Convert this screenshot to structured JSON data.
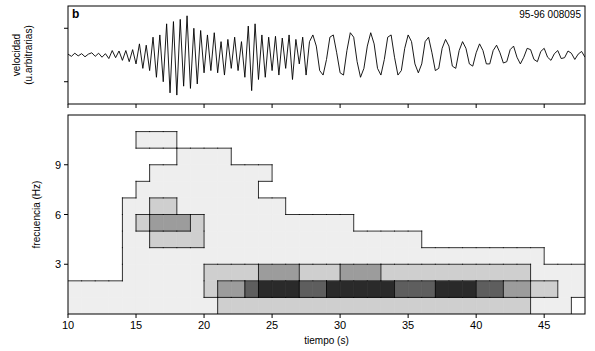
{
  "chart_data": [
    {
      "type": "line",
      "panel": "b",
      "annotations": [
        "95-96 008095"
      ],
      "ylabel": "velocidad (u.arbitrarias)",
      "color": "#000000",
      "tick_labels": false,
      "xlim": [
        10,
        48
      ],
      "xticks": [
        10,
        15,
        20,
        25,
        30,
        35,
        40,
        45
      ],
      "ylim": [
        -1.1,
        1.1
      ],
      "yticks": [
        -0.6,
        0.6
      ],
      "x": [
        10,
        10.25,
        10.5,
        10.75,
        11,
        11.25,
        11.5,
        11.75,
        12,
        12.25,
        12.5,
        12.75,
        13,
        13.25,
        13.5,
        13.75,
        14,
        14.25,
        14.5,
        14.75,
        15,
        15.25,
        15.5,
        15.75,
        16,
        16.25,
        16.5,
        16.75,
        17,
        17.25,
        17.5,
        17.75,
        18,
        18.25,
        18.5,
        18.75,
        19,
        19.25,
        19.5,
        19.75,
        20,
        20.25,
        20.5,
        20.75,
        21,
        21.25,
        21.5,
        21.75,
        22,
        22.25,
        22.5,
        22.75,
        23,
        23.25,
        23.5,
        23.75,
        24,
        24.25,
        24.5,
        24.75,
        25,
        25.25,
        25.5,
        25.75,
        26,
        26.25,
        26.5,
        26.75,
        27,
        27.25,
        27.5,
        27.75,
        28,
        28.25,
        28.5,
        28.75,
        29,
        29.25,
        29.5,
        29.75,
        30,
        30.25,
        30.5,
        30.75,
        31,
        31.25,
        31.5,
        31.75,
        32,
        32.25,
        32.5,
        32.75,
        33,
        33.25,
        33.5,
        33.75,
        34,
        34.25,
        34.5,
        34.75,
        35,
        35.25,
        35.5,
        35.75,
        36,
        36.25,
        36.5,
        36.75,
        37,
        37.25,
        37.5,
        37.75,
        38,
        38.25,
        38.5,
        38.75,
        39,
        39.25,
        39.5,
        39.75,
        40,
        40.25,
        40.5,
        40.75,
        41,
        41.25,
        41.5,
        41.75,
        42,
        42.25,
        42.5,
        42.75,
        43,
        43.25,
        43.5,
        43.75,
        44,
        44.25,
        44.5,
        44.75,
        45,
        45.25,
        45.5,
        45.75,
        46,
        46.25,
        46.5,
        46.75,
        47,
        47.25,
        47.5,
        47.75,
        48
      ],
      "values": [
        0.02,
        -0.03,
        0.04,
        -0.02,
        0.03,
        -0.04,
        0.02,
        0.05,
        -0.03,
        0.04,
        -0.05,
        0.03,
        -0.08,
        0.1,
        -0.06,
        0.09,
        -0.12,
        0.1,
        -0.15,
        0.12,
        -0.2,
        0.25,
        -0.3,
        0.22,
        -0.35,
        0.4,
        -0.5,
        0.45,
        -0.6,
        0.7,
        -0.85,
        0.75,
        -0.9,
        0.8,
        -0.7,
        0.88,
        -0.75,
        0.6,
        -0.65,
        0.55,
        -0.4,
        0.45,
        -0.35,
        0.5,
        -0.4,
        0.3,
        -0.45,
        0.35,
        -0.3,
        0.4,
        -0.35,
        0.3,
        -0.5,
        0.65,
        -0.8,
        0.7,
        -0.55,
        0.45,
        -0.5,
        0.4,
        -0.35,
        0.42,
        -0.45,
        0.38,
        -0.3,
        0.45,
        -0.55,
        0.35,
        -0.2,
        0.4,
        -0.45,
        0.3,
        0.45,
        0.2,
        -0.35,
        -0.45,
        -0.1,
        0.4,
        0.45,
        0.05,
        -0.4,
        -0.45,
        0.1,
        0.5,
        0.4,
        -0.15,
        -0.5,
        -0.3,
        0.2,
        0.5,
        0.25,
        -0.3,
        -0.45,
        -0.1,
        0.4,
        0.45,
        -0.05,
        -0.45,
        -0.35,
        0.15,
        0.45,
        0.3,
        -0.2,
        -0.4,
        -0.2,
        0.3,
        0.4,
        0.05,
        -0.35,
        -0.3,
        0.15,
        0.35,
        0.2,
        -0.25,
        -0.3,
        0.1,
        0.3,
        0.15,
        -0.2,
        -0.25,
        0.05,
        0.25,
        0.1,
        -0.2,
        -0.2,
        0.1,
        0.22,
        0.05,
        -0.18,
        -0.15,
        0.12,
        0.2,
        -0.05,
        -0.2,
        -0.05,
        0.15,
        0.12,
        -0.1,
        -0.15,
        0.08,
        0.15,
        -0.05,
        -0.12,
        0.03,
        0.1,
        -0.08,
        -0.06,
        0.09,
        0.04,
        -0.1,
        0.02,
        0.08,
        -0.05
      ]
    },
    {
      "type": "contour",
      "xlabel": "tiempo (s)",
      "ylabel": "frecuencia (Hz)",
      "xlim": [
        10,
        48
      ],
      "xticks": [
        10,
        15,
        20,
        25,
        30,
        35,
        40,
        45
      ],
      "ylim": [
        0,
        12
      ],
      "yticks": [
        3,
        6,
        9
      ],
      "levels": [
        1,
        2,
        3,
        4,
        5
      ],
      "colors": [
        "#ffffff",
        "#eeeeee",
        "#cfcfcf",
        "#9c9c9c",
        "#5e5e5e",
        "#2a2a2a"
      ],
      "x": [
        10.5,
        11.5,
        12.5,
        13.5,
        14.5,
        15.5,
        16.5,
        17.5,
        18.5,
        19.5,
        20.5,
        21.5,
        22.5,
        23.5,
        24.5,
        25.5,
        26.5,
        27.5,
        28.5,
        29.5,
        30.5,
        31.5,
        32.5,
        33.5,
        34.5,
        35.5,
        36.5,
        37.5,
        38.5,
        39.5,
        40.5,
        41.5,
        42.5,
        43.5,
        44.5,
        45.5,
        46.5,
        47.5
      ],
      "y": [
        0.5,
        1.5,
        2.5,
        3.5,
        4.5,
        5.5,
        6.5,
        7.5,
        8.5,
        9.5,
        10.5,
        11.5
      ],
      "values": [
        [
          1,
          1,
          1,
          1,
          1,
          1,
          1,
          1,
          1,
          1,
          1,
          2,
          2,
          2,
          2,
          2,
          2,
          2,
          2,
          2,
          2,
          2,
          2,
          2,
          2,
          2,
          2,
          2,
          2,
          2,
          2,
          2,
          2,
          2,
          1,
          1,
          1,
          0
        ],
        [
          1,
          1,
          1,
          1,
          1,
          1,
          1,
          1,
          1,
          1,
          2,
          3,
          3,
          4,
          5,
          5,
          5,
          4,
          4,
          5,
          5,
          5,
          5,
          5,
          4,
          4,
          4,
          5,
          5,
          5,
          4,
          4,
          3,
          3,
          2,
          2,
          1,
          1
        ],
        [
          0,
          0,
          0,
          0,
          1,
          1,
          1,
          1,
          1,
          1,
          2,
          2,
          2,
          2,
          3,
          3,
          3,
          2,
          2,
          2,
          3,
          3,
          3,
          2,
          2,
          2,
          2,
          2,
          2,
          2,
          2,
          2,
          2,
          2,
          1,
          1,
          1,
          1
        ],
        [
          0,
          0,
          0,
          0,
          1,
          1,
          1,
          1,
          1,
          1,
          1,
          1,
          1,
          1,
          1,
          1,
          1,
          1,
          1,
          1,
          1,
          1,
          1,
          1,
          1,
          1,
          1,
          1,
          1,
          1,
          1,
          1,
          1,
          1,
          1,
          0,
          0,
          0
        ],
        [
          0,
          0,
          0,
          0,
          1,
          1,
          2,
          2,
          2,
          2,
          1,
          1,
          1,
          1,
          1,
          1,
          1,
          1,
          1,
          1,
          1,
          1,
          1,
          1,
          1,
          1,
          0,
          0,
          0,
          0,
          0,
          0,
          0,
          0,
          0,
          0,
          0,
          0
        ],
        [
          0,
          0,
          0,
          0,
          1,
          2,
          3,
          3,
          3,
          2,
          1,
          1,
          1,
          1,
          1,
          1,
          1,
          1,
          1,
          1,
          1,
          0,
          0,
          0,
          0,
          0,
          0,
          0,
          0,
          0,
          0,
          0,
          0,
          0,
          0,
          0,
          0,
          0
        ],
        [
          0,
          0,
          0,
          0,
          1,
          1,
          2,
          2,
          1,
          1,
          1,
          1,
          1,
          1,
          1,
          1,
          0,
          0,
          0,
          0,
          0,
          0,
          0,
          0,
          0,
          0,
          0,
          0,
          0,
          0,
          0,
          0,
          0,
          0,
          0,
          0,
          0,
          0
        ],
        [
          0,
          0,
          0,
          0,
          0,
          1,
          1,
          1,
          1,
          1,
          1,
          1,
          1,
          1,
          0,
          0,
          0,
          0,
          0,
          0,
          0,
          0,
          0,
          0,
          0,
          0,
          0,
          0,
          0,
          0,
          0,
          0,
          0,
          0,
          0,
          0,
          0,
          0
        ],
        [
          0,
          0,
          0,
          0,
          0,
          0,
          1,
          1,
          1,
          1,
          1,
          1,
          1,
          1,
          1,
          0,
          0,
          0,
          0,
          0,
          0,
          0,
          0,
          0,
          0,
          0,
          0,
          0,
          0,
          0,
          0,
          0,
          0,
          0,
          0,
          0,
          0,
          0
        ],
        [
          0,
          0,
          0,
          0,
          0,
          0,
          0,
          0,
          1,
          1,
          1,
          1,
          0,
          0,
          0,
          0,
          0,
          0,
          0,
          0,
          0,
          0,
          0,
          0,
          0,
          0,
          0,
          0,
          0,
          0,
          0,
          0,
          0,
          0,
          0,
          0,
          0,
          0
        ],
        [
          0,
          0,
          0,
          0,
          0,
          1,
          1,
          1,
          0,
          0,
          0,
          0,
          0,
          0,
          0,
          0,
          0,
          0,
          0,
          0,
          0,
          0,
          0,
          0,
          0,
          0,
          0,
          0,
          0,
          0,
          0,
          0,
          0,
          0,
          0,
          0,
          0,
          0
        ],
        [
          0,
          0,
          0,
          0,
          0,
          0,
          0,
          0,
          0,
          0,
          0,
          0,
          0,
          0,
          0,
          0,
          0,
          0,
          0,
          0,
          0,
          0,
          0,
          0,
          0,
          0,
          0,
          0,
          0,
          0,
          0,
          0,
          0,
          0,
          0,
          0,
          0,
          0
        ]
      ]
    }
  ]
}
